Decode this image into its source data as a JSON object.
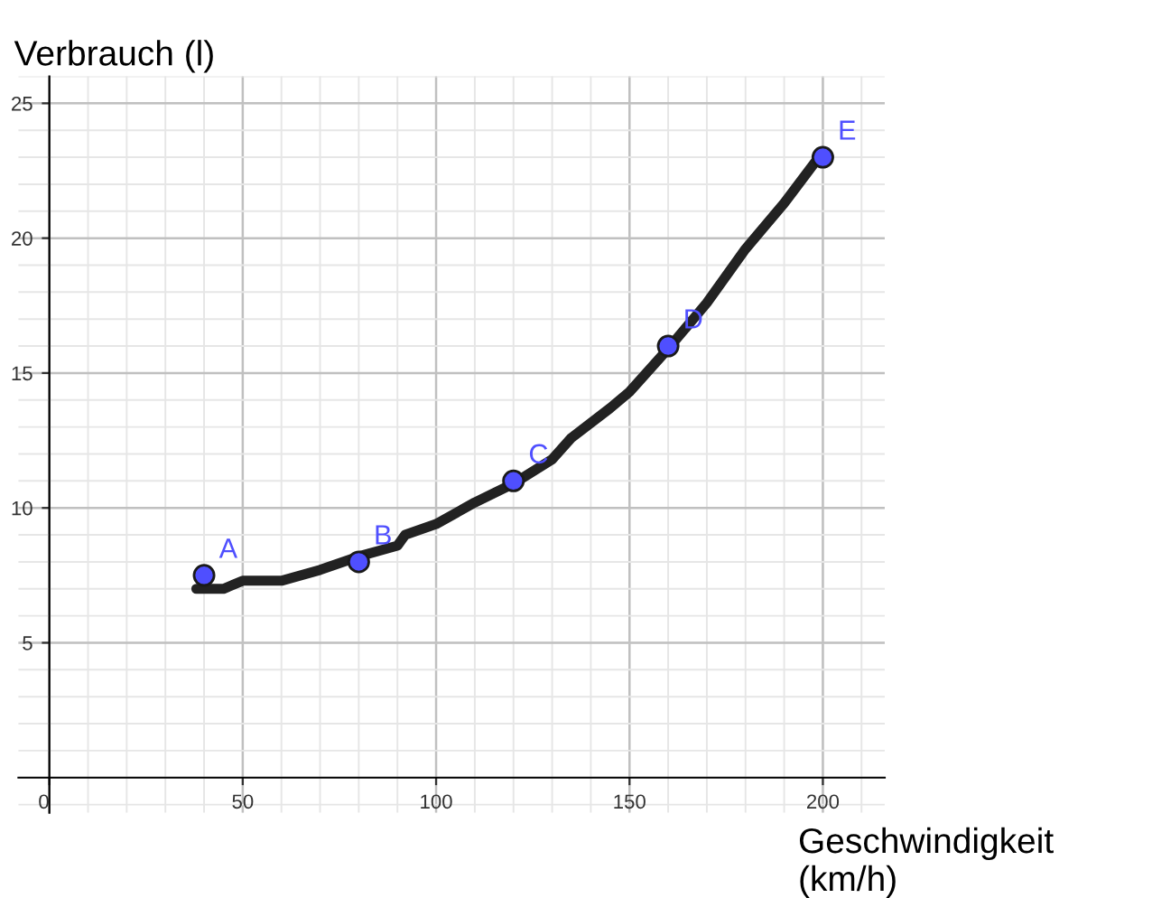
{
  "chart_data": {
    "type": "line",
    "xlabel": "Geschwindigkeit (km/h)",
    "ylabel": "Verbrauch (l)",
    "xlim": [
      -8,
      216
    ],
    "ylim": [
      -1.3,
      26
    ],
    "xticks": [
      0,
      50,
      100,
      150,
      200
    ],
    "yticks": [
      5,
      10,
      15,
      20,
      25
    ],
    "grid": true,
    "series": [
      {
        "color": "#222222",
        "line_style": "solid",
        "x": [
          38,
          45,
          50,
          60,
          70,
          80,
          90,
          92,
          100,
          110,
          120,
          130,
          135,
          145,
          150,
          160,
          170,
          180,
          190,
          200
        ],
        "values": [
          7,
          7,
          7.3,
          7.3,
          7.7,
          8.2,
          8.6,
          9,
          9.4,
          10.2,
          10.9,
          11.8,
          12.6,
          13.7,
          14.3,
          15.9,
          17.6,
          19.6,
          21.3,
          23.2
        ]
      },
      {
        "type": "scatter",
        "marker": "circle",
        "color": "#4f4fff",
        "x": [
          40,
          80,
          120,
          160,
          200
        ],
        "values": [
          7.5,
          8,
          11,
          16,
          23
        ]
      }
    ],
    "annotations": [
      {
        "text": "A",
        "x": 40,
        "y": 7.5
      },
      {
        "text": "B",
        "x": 80,
        "y": 8
      },
      {
        "text": "C",
        "x": 120,
        "y": 11
      },
      {
        "text": "D",
        "x": 160,
        "y": 16
      },
      {
        "text": "E",
        "x": 200,
        "y": 23
      }
    ]
  }
}
